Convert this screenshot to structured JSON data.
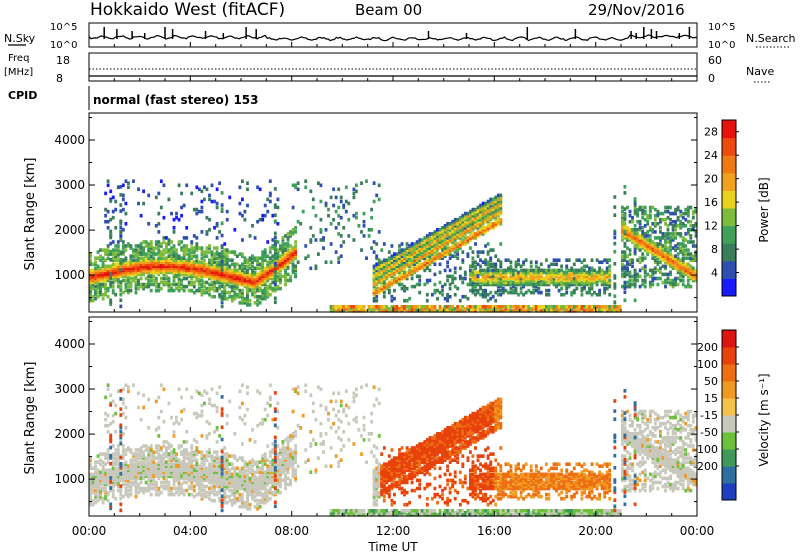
{
  "header": {
    "station": "Hokkaido West (fitACF)",
    "beam": "Beam 00",
    "date": "29/Nov/2016"
  },
  "noise_panel": {
    "left_label": "N.Sky",
    "left_ticks": [
      "10^5",
      "10^0"
    ],
    "right_label": "N.Search",
    "right_ticks": [
      "10^5",
      "10^0"
    ]
  },
  "freq_panel": {
    "left_label_line1": "Freq",
    "left_label_line2": "[MHz]",
    "left_ticks": [
      "18",
      "8"
    ],
    "right_label": "Nave",
    "right_ticks": [
      "60",
      "0"
    ]
  },
  "cpid_panel": {
    "label": "CPID",
    "text": "normal (fast stereo) 153"
  },
  "colors": {
    "power": [
      "#1a1aff",
      "#2f4fb0",
      "#3a7d5a",
      "#3fa05a",
      "#7dbb3c",
      "#e9d21e",
      "#f0a11e",
      "#f07a12",
      "#ee4a0e",
      "#e8120c"
    ],
    "velocity": [
      "#1f3fbf",
      "#2f6fa0",
      "#3f9a5a",
      "#6cc03c",
      "#c8c8bc",
      "#f5c24a",
      "#f09a22",
      "#ee6e12",
      "#e8420c",
      "#dd1510"
    ]
  },
  "chart_data": [
    {
      "type": "heatmap",
      "panel": "power",
      "ylabel": "Slant Range [km]",
      "yticks": [
        "1000",
        "2000",
        "3000",
        "4000"
      ],
      "ylim": [
        180,
        4600
      ],
      "xlim": [
        0,
        24
      ],
      "xticks_hours": [
        0,
        4,
        8,
        12,
        16,
        20,
        24
      ],
      "colorbar_label": "Power [dB]",
      "colorbar_ticks": [
        "4",
        "8",
        "12",
        "16",
        "20",
        "24",
        "28"
      ],
      "colorbar_range": [
        0,
        30
      ]
    },
    {
      "type": "heatmap",
      "panel": "velocity",
      "ylabel": "Slant Range [km]",
      "yticks": [
        "1000",
        "2000",
        "3000",
        "4000"
      ],
      "ylim": [
        180,
        4600
      ],
      "xlim": [
        0,
        24
      ],
      "xticks_hours": [
        0,
        4,
        8,
        12,
        16,
        20,
        24
      ],
      "colorbar_label": "Velocity [m s⁻¹]",
      "colorbar_ticks": [
        "200",
        "100",
        "50",
        "15",
        "-15",
        "-50",
        "-100",
        "-200"
      ]
    }
  ],
  "xaxis": {
    "ticklabels": [
      "00:00",
      "04:00",
      "08:00",
      "12:00",
      "16:00",
      "20:00",
      "00:00"
    ],
    "label": "Time UT"
  }
}
